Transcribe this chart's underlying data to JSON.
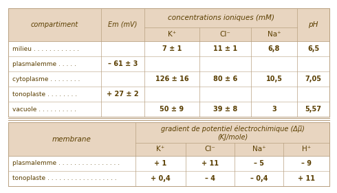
{
  "bg_header": "#e8d5c0",
  "bg_white": "#ffffff",
  "text_color": "#5a3e00",
  "border_color": "#b8a080",
  "table1_rows": [
    [
      "milieu . . . . . . . . . . . .",
      "",
      "7 ± 1",
      "11 ± 1",
      "6,8",
      "6,5"
    ],
    [
      "plasmalemme . . . . .",
      "– 61 ± 3",
      "",
      "",
      "",
      ""
    ],
    [
      "cytoplasme . . . . . . . .",
      "",
      "126 ± 16",
      "80 ± 6",
      "10,5",
      "7,05"
    ],
    [
      "tonoplaste . . . . . . . .",
      "+ 27 ± 2",
      "",
      "",
      "",
      ""
    ],
    [
      "vacuole . . . . . . . . . .",
      "",
      "50 ± 9",
      "39 ± 8",
      "3",
      "5,57"
    ]
  ],
  "table2_rows": [
    [
      "plasmalemme . . . . . . . . . . . . . . . .",
      "+ 1",
      "+ 11",
      "– 5",
      "– 9"
    ],
    [
      "tonoplaste . . . . . . . . . . . . . . . . . .",
      "+ 0,4",
      "– 4",
      "– 0,4",
      "+ 11"
    ]
  ]
}
